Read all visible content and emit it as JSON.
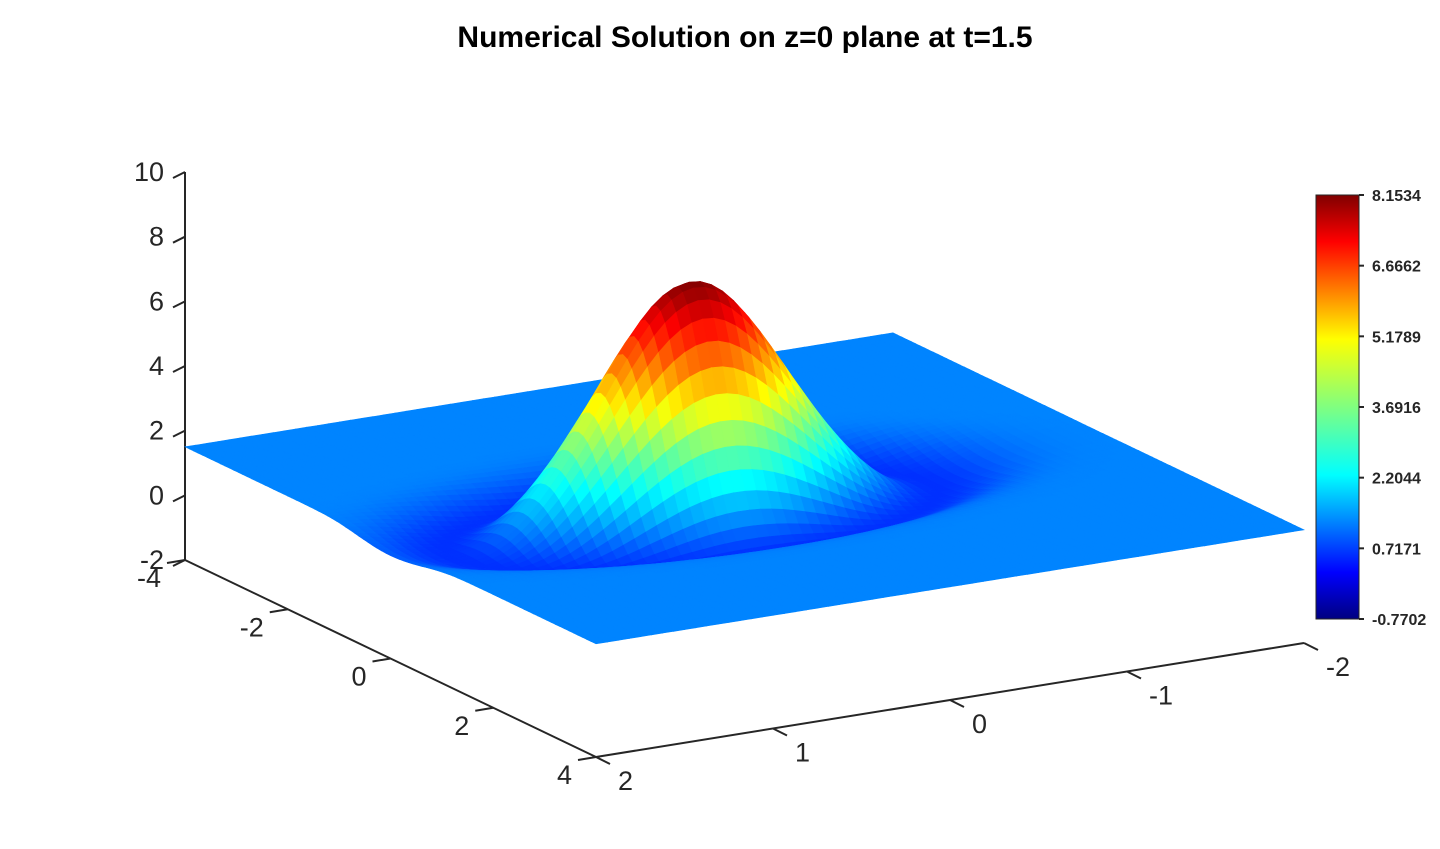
{
  "chart_data": {
    "type": "surface",
    "title": "Numerical Solution on z=0 plane at t=1.5",
    "x_axis": {
      "range": [
        -2,
        2
      ],
      "ticks": [
        2,
        1,
        0,
        -1,
        -2
      ],
      "tick_labels": [
        "2",
        "1",
        "0",
        "-1",
        "-2"
      ]
    },
    "y_axis": {
      "range": [
        -4,
        4
      ],
      "ticks": [
        -4,
        -2,
        0,
        2,
        4
      ],
      "tick_labels": [
        "-4",
        "-2",
        "0",
        "2",
        "4"
      ]
    },
    "z_axis": {
      "range": [
        -2,
        10
      ],
      "ticks": [
        10,
        8,
        6,
        4,
        2,
        0,
        -2
      ],
      "tick_labels": [
        "10",
        "8",
        "6",
        "4",
        "2",
        "0",
        "-2"
      ]
    },
    "surface": {
      "description_values": {
        "peak_value": 8.1534,
        "min_value": -0.7702,
        "background_value": 1.5,
        "peak_center_xy": [
          0.3,
          0
        ]
      }
    },
    "colorbar": {
      "colormap": "jet",
      "min": -0.7702,
      "max": 8.1534,
      "tick_labels": [
        "8.1534",
        "6.6662",
        "5.1789",
        "3.6916",
        "2.2044",
        "0.7171",
        "-0.7702"
      ]
    },
    "grid": false
  }
}
